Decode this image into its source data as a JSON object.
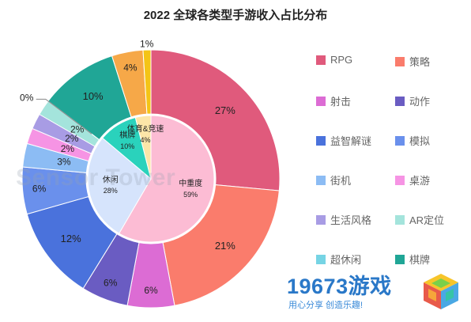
{
  "chart_data": {
    "type": "pie",
    "title": "2022 全球各类型手游收入占比分布",
    "watermark": "Sensor Tower",
    "outer": {
      "categories": [
        "RPG",
        "策略",
        "射击",
        "动作",
        "益智解谜",
        "模拟",
        "街机",
        "桌游",
        "生活风格",
        "AR定位",
        "超休闲",
        "棋牌",
        "体育",
        "竞速"
      ],
      "values": [
        27,
        21,
        6,
        6,
        12,
        6,
        3,
        2,
        2,
        2,
        0,
        10,
        4,
        1
      ],
      "labels": [
        "27%",
        "21%",
        "6%",
        "6%",
        "12%",
        "6%",
        "3%",
        "2%",
        "2%",
        "2%",
        "0%",
        "10%",
        "4%",
        "1%"
      ],
      "colors": [
        "#e05a7c",
        "#fa7c6c",
        "#dc6cd4",
        "#6a5cc2",
        "#4a72dc",
        "#6a90ec",
        "#8cbcf4",
        "#f694e4",
        "#a89ce4",
        "#a4e4dc",
        "#76d4e4",
        "#20a696",
        "#f6a848",
        "#f4c416"
      ]
    },
    "inner": {
      "categories": [
        "中重度",
        "休闲",
        "棋牌",
        "体育&竞速"
      ],
      "values": [
        59,
        28,
        10,
        4
      ],
      "labels": [
        "59%",
        "28%",
        "10%",
        "4%"
      ],
      "colors": [
        "#fcbcd4",
        "#d6e4fc",
        "#2ad2bc",
        "#fce6a8"
      ]
    },
    "legend": {
      "placement": "right",
      "items": [
        "RPG",
        "策略",
        "射击",
        "动作",
        "益智解谜",
        "模拟",
        "街机",
        "桌游",
        "生活风格",
        "AR定位",
        "超休闲",
        "棋牌"
      ],
      "colors": [
        "#e05a7c",
        "#fa7c6c",
        "#dc6cd4",
        "#6a5cc2",
        "#4a72dc",
        "#6a90ec",
        "#8cbcf4",
        "#f694e4",
        "#a89ce4",
        "#a4e4dc",
        "#76d4e4",
        "#20a696"
      ]
    }
  },
  "logo": {
    "text": "19673游戏",
    "slogan": "用心分享 创造乐趣!"
  }
}
